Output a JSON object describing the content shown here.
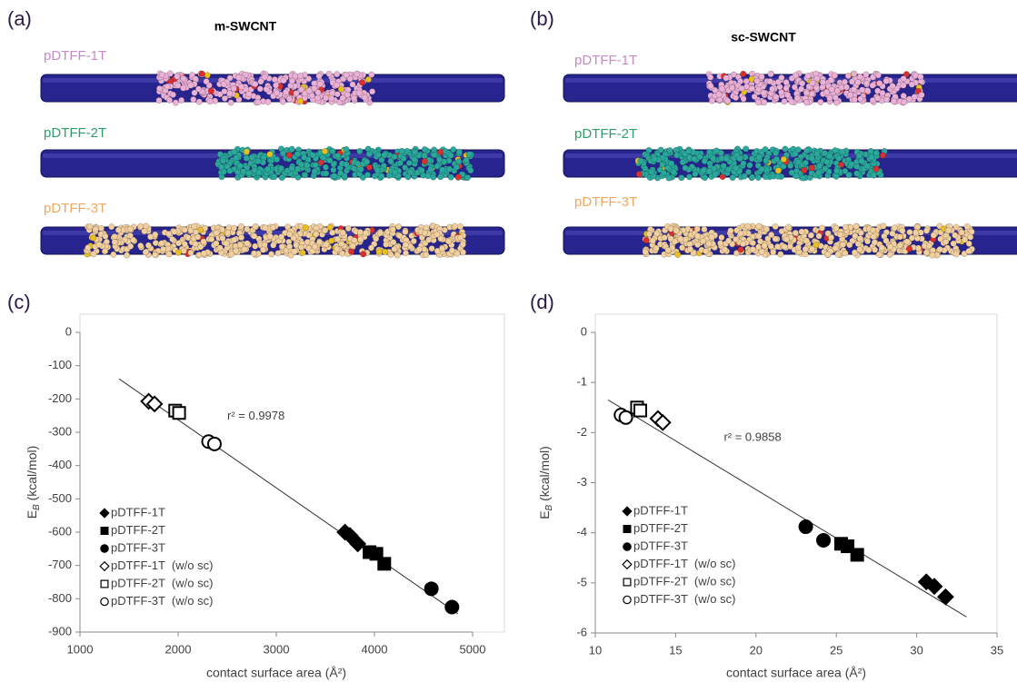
{
  "panels": [
    {
      "label": "(a)",
      "title": "m-SWCNT",
      "polymers": [
        {
          "name": "pDTFF-1T",
          "color": "#c68ac6",
          "bead": "#eab0d6"
        },
        {
          "name": "pDTFF-2T",
          "color": "#2e9e6a",
          "bead": "#2aa89c"
        },
        {
          "name": "pDTFF-3T",
          "color": "#f0a860",
          "bead": "#f2cf9e"
        }
      ]
    },
    {
      "label": "(b)",
      "title": "sc-SWCNT",
      "polymers": [
        {
          "name": "pDTFF-1T",
          "color": "#c68ac6",
          "bead": "#eab0d6"
        },
        {
          "name": "pDTFF-2T",
          "color": "#2e9e6a",
          "bead": "#2aa89c"
        },
        {
          "name": "pDTFF-3T",
          "color": "#f0a860",
          "bead": "#f2cf9e"
        }
      ]
    }
  ],
  "chart_data": [
    {
      "type": "scatter",
      "panel": "(c)",
      "xlabel": "contact surface area (Å²)",
      "ylabel": {
        "symbol": "E",
        "subscript": "B",
        "unit": " (kcal/mol)"
      },
      "annotation": "r² = 0.9978",
      "xlim": [
        1000,
        5000
      ],
      "xticks": [
        1000,
        2000,
        3000,
        4000,
        5000
      ],
      "ylim": [
        -900,
        0
      ],
      "yticks": [
        0,
        -100,
        -200,
        -300,
        -400,
        -500,
        -600,
        -700,
        -800,
        -900
      ],
      "fit": {
        "x": [
          1400,
          4850
        ],
        "y": [
          -140,
          -845
        ]
      },
      "series": [
        {
          "name": "pDTFF-1T",
          "marker": "diamond",
          "filled": true,
          "color": "#000000",
          "x": [
            3700,
            3750,
            3830
          ],
          "values": [
            -600,
            -610,
            -635
          ]
        },
        {
          "name": "pDTFF-2T",
          "marker": "square",
          "filled": true,
          "color": "#000000",
          "x": [
            3950,
            4020,
            4100
          ],
          "values": [
            -660,
            -665,
            -695
          ]
        },
        {
          "name": "pDTFF-3T",
          "marker": "circle",
          "filled": true,
          "color": "#000000",
          "x": [
            4580,
            4790
          ],
          "values": [
            -770,
            -825
          ]
        },
        {
          "name": "pDTFF-1T  (w/o sc)",
          "marker": "diamond",
          "filled": false,
          "color": "#000000",
          "x": [
            1700,
            1760
          ],
          "values": [
            -207,
            -215
          ]
        },
        {
          "name": "pDTFF-2T  (w/o sc)",
          "marker": "square",
          "filled": false,
          "color": "#000000",
          "x": [
            1970,
            2010
          ],
          "values": [
            -235,
            -242
          ]
        },
        {
          "name": "pDTFF-3T  (w/o sc)",
          "marker": "circle",
          "filled": false,
          "color": "#000000",
          "x": [
            2310,
            2370
          ],
          "values": [
            -328,
            -335
          ]
        }
      ]
    },
    {
      "type": "scatter",
      "panel": "(d)",
      "xlabel": "contact surface area (Å²)",
      "ylabel": {
        "symbol": "E",
        "subscript": "B",
        "unit": " (kcal/mol)"
      },
      "annotation": "r² = 0.9858",
      "xlim": [
        10,
        35
      ],
      "xticks": [
        10,
        15,
        20,
        25,
        30,
        35
      ],
      "ylim": [
        -6,
        0
      ],
      "yticks": [
        0,
        -1,
        -2,
        -3,
        -4,
        -5,
        -6
      ],
      "fit": {
        "x": [
          10.8,
          33.1
        ],
        "y": [
          -1.35,
          -5.68
        ]
      },
      "series": [
        {
          "name": "pDTFF-1T",
          "marker": "diamond",
          "filled": true,
          "color": "#000000",
          "x": [
            30.6,
            31.1,
            31.8
          ],
          "values": [
            -4.98,
            -5.07,
            -5.28
          ]
        },
        {
          "name": "pDTFF-2T",
          "marker": "square",
          "filled": true,
          "color": "#000000",
          "x": [
            25.3,
            25.7,
            26.3
          ],
          "values": [
            -4.22,
            -4.27,
            -4.44
          ]
        },
        {
          "name": "pDTFF-3T",
          "marker": "circle",
          "filled": true,
          "color": "#000000",
          "x": [
            23.1,
            24.2
          ],
          "values": [
            -3.88,
            -4.15
          ]
        },
        {
          "name": "pDTFF-1T  (w/o sc)",
          "marker": "diamond",
          "filled": false,
          "color": "#000000",
          "x": [
            13.9,
            14.2
          ],
          "values": [
            -1.72,
            -1.8
          ]
        },
        {
          "name": "pDTFF-2T  (w/o sc)",
          "marker": "square",
          "filled": false,
          "color": "#000000",
          "x": [
            12.6,
            12.8
          ],
          "values": [
            -1.5,
            -1.56
          ]
        },
        {
          "name": "pDTFF-3T  (w/o sc)",
          "marker": "circle",
          "filled": false,
          "color": "#000000",
          "x": [
            11.6,
            11.9
          ],
          "values": [
            -1.65,
            -1.7
          ]
        }
      ]
    }
  ]
}
